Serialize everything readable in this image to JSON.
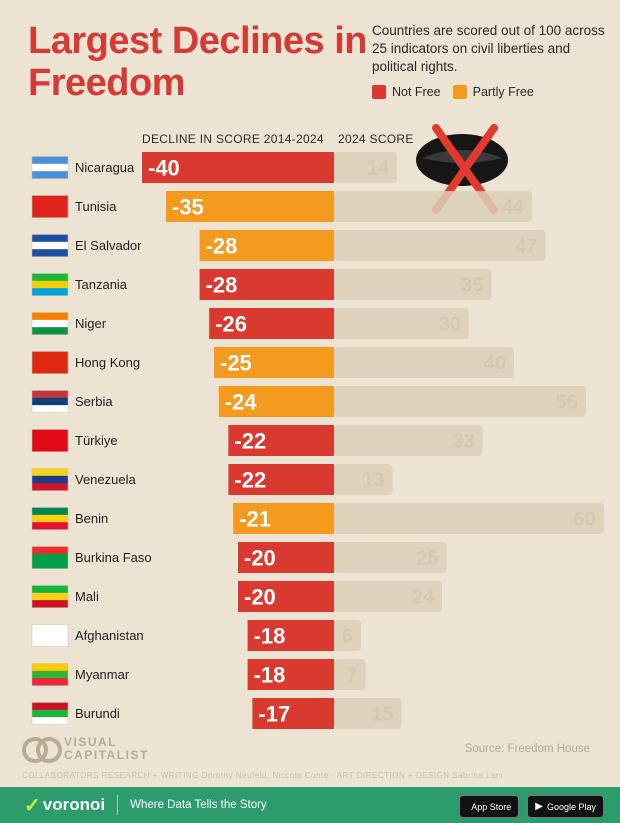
{
  "title": "Largest Declines in Freedom",
  "subtitle": "Countries are scored out of 100 across 25 indicators on civil liberties and political rights.",
  "legend": {
    "not_free": "Not Free",
    "partly_free": "Partly Free"
  },
  "colors": {
    "not_free": "#d9392f",
    "partly_free": "#f49a1e",
    "score_bar": "#dccfb8",
    "title": "#d63a35"
  },
  "headers": {
    "decline": "DECLINE IN SCORE 2014-2024",
    "score": "2024 SCORE"
  },
  "chart_data": {
    "type": "bar",
    "title": "Largest Declines in Freedom",
    "categories": [
      "Nicaragua",
      "Tunisia",
      "El Salvador",
      "Tanzania",
      "Niger",
      "Hong Kong",
      "Serbia",
      "Türkiye",
      "Venezuela",
      "Benin",
      "Burkina Faso",
      "Mali",
      "Afghanistan",
      "Myanmar",
      "Burundi"
    ],
    "series": [
      {
        "name": "DECLINE IN SCORE 2014-2024",
        "values": [
          -40,
          -35,
          -28,
          -28,
          -26,
          -25,
          -24,
          -22,
          -22,
          -21,
          -20,
          -20,
          -18,
          -18,
          -17
        ]
      },
      {
        "name": "2024 SCORE",
        "values": [
          14,
          44,
          47,
          35,
          30,
          40,
          56,
          33,
          13,
          60,
          25,
          24,
          6,
          7,
          15
        ]
      }
    ],
    "status": [
      "Not Free",
      "Partly Free",
      "Partly Free",
      "Not Free",
      "Not Free",
      "Partly Free",
      "Partly Free",
      "Not Free",
      "Not Free",
      "Partly Free",
      "Not Free",
      "Not Free",
      "Not Free",
      "Not Free",
      "Not Free"
    ],
    "decline_range": [
      -40,
      0
    ],
    "score_range": [
      0,
      60
    ]
  },
  "footer": {
    "logo_text": "VISUAL CAPITALIST",
    "source": "Source: Freedom House",
    "collaborators": "COLLABORATORS   RESEARCH + WRITING Dorothy Neufeld, Niccolo Conte  ·  ART DIRECTION + DESIGN Sabrina Lam",
    "brand": "voronoi",
    "tagline": "Where Data Tells the Story",
    "app_store": "App Store",
    "google_play": "Google Play"
  }
}
